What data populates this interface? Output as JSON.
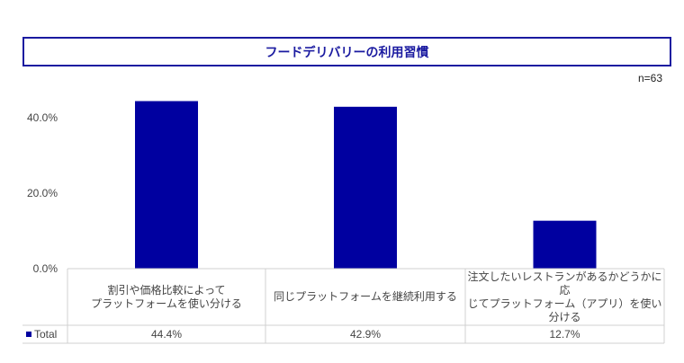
{
  "chart_data": {
    "type": "bar",
    "title": "フードデリバリーの利用習慣",
    "note": "n=63",
    "categories": [
      "割引や価格比較によって\nプラットフォームを使い分ける",
      "同じプラットフォームを継続利用する",
      "注文したいレストランがあるかどうかに応\nじてプラットフォーム（アプリ）を使い分ける"
    ],
    "series": [
      {
        "name": "Total",
        "values": [
          44.4,
          42.9,
          12.7
        ],
        "labels": [
          "44.4%",
          "42.9%",
          "12.7%"
        ],
        "color": "#0000a0"
      }
    ],
    "yticks": [
      "0.0%",
      "20.0%",
      "40.0%"
    ],
    "ylim": [
      0,
      45
    ],
    "grid": false,
    "legend": "data-table"
  }
}
